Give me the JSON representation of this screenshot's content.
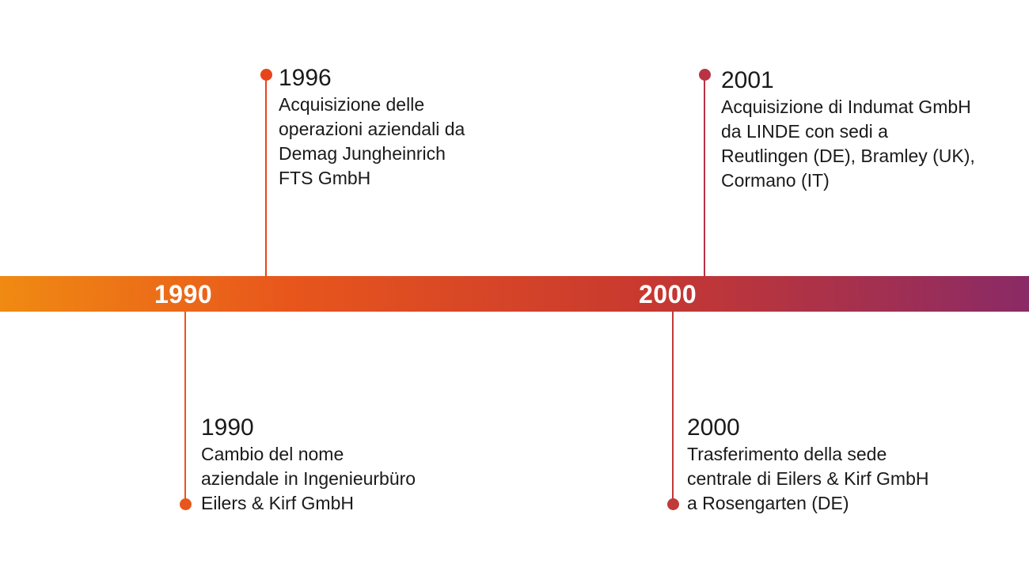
{
  "decades": [
    "1990",
    "2000"
  ],
  "events": [
    {
      "year": "1996",
      "description": "Acquisizione delle\noperazioni aziendali da\nDemag Jungheinrich\nFTS GmbH",
      "color": "#e8441c"
    },
    {
      "year": "2001",
      "description": "Acquisizione di Indumat GmbH\nda LINDE con sedi a\nReutlingen (DE), Bramley (UK),\nCormano (IT)",
      "color": "#b83444"
    },
    {
      "year": "1990",
      "description": "Cambio del nome\naziendale in Ingenieurbüro\nEilers & Kirf GmbH",
      "color": "#e8561c"
    },
    {
      "year": "2000",
      "description": "Trasferimento della sede\ncentrale di Eilers & Kirf GmbH\na Rosengarten (DE)",
      "color": "#c03a3a"
    }
  ],
  "colors": {
    "gradient_start": "#f08a12",
    "gradient_mid": "#e8561c",
    "gradient_end": "#8a2a66",
    "text": "#1a1a1a",
    "decade_label": "#ffffff"
  }
}
